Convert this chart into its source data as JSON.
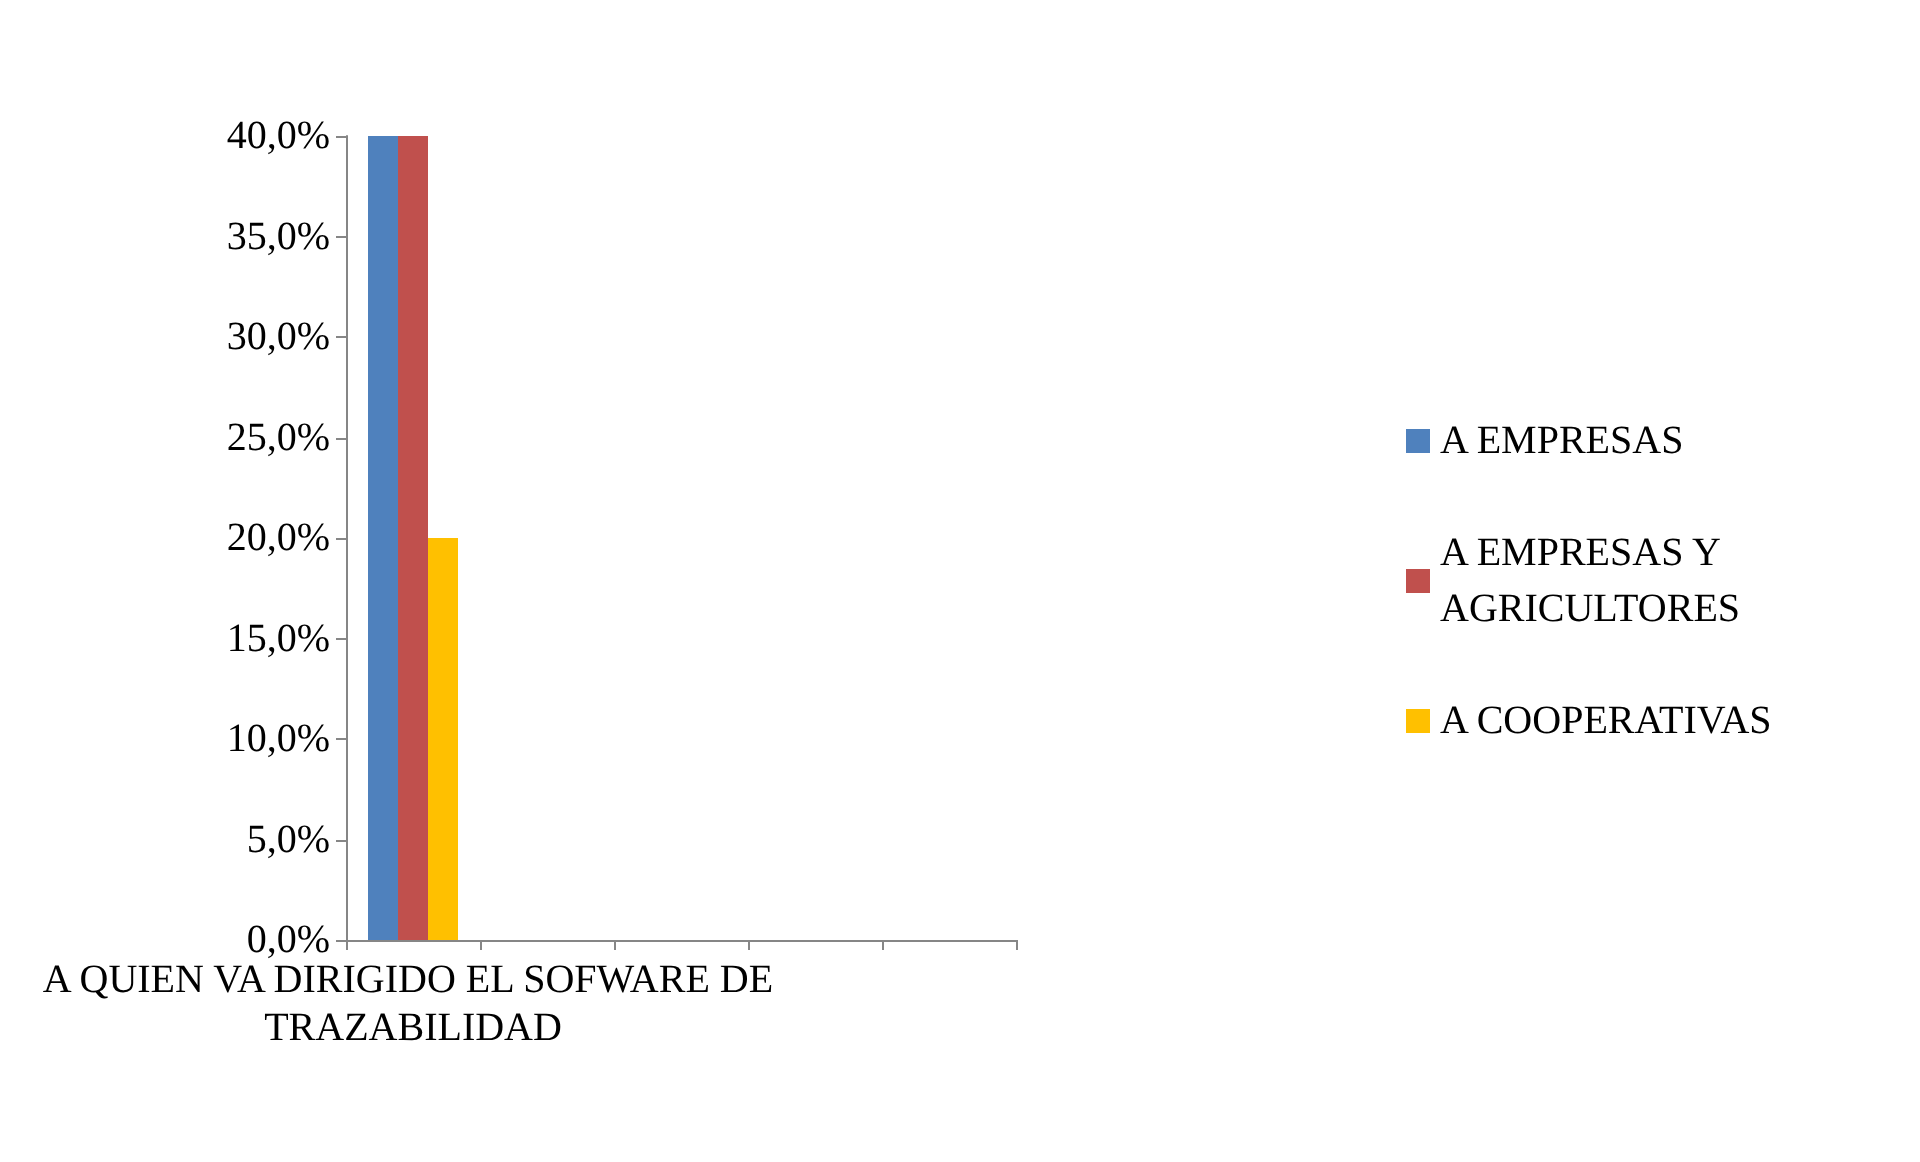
{
  "chart_data": {
    "type": "bar",
    "categories": [
      "A QUIEN VA DIRIGIDO EL SOFWARE DE TRAZABILIDAD",
      null,
      null,
      null,
      null
    ],
    "series": [
      {
        "name": "A EMPRESAS",
        "color": "#4f81bd",
        "values": [
          40,
          null,
          null,
          null,
          null
        ]
      },
      {
        "name": "A EMPRESAS Y AGRICULTORES",
        "color": "#c0504d",
        "values": [
          40,
          null,
          null,
          null,
          null
        ]
      },
      {
        "name": "A COOPERATIVAS",
        "color": "#ffc000",
        "values": [
          20,
          null,
          null,
          null,
          null
        ]
      }
    ],
    "ylim": [
      0,
      40
    ],
    "yticks": [
      {
        "value": 0,
        "label": "0,0%"
      },
      {
        "value": 5,
        "label": "5,0%"
      },
      {
        "value": 10,
        "label": "10,0%"
      },
      {
        "value": 15,
        "label": "15,0%"
      },
      {
        "value": 20,
        "label": "20,0%"
      },
      {
        "value": 25,
        "label": "25,0%"
      },
      {
        "value": 30,
        "label": "30,0%"
      },
      {
        "value": 35,
        "label": "35,0%"
      },
      {
        "value": 40,
        "label": "40,0%"
      }
    ],
    "grid": false,
    "legend": "right"
  }
}
